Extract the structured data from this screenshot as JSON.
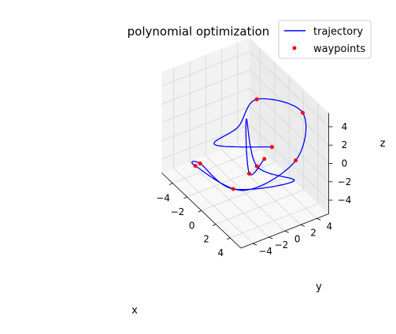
{
  "chart_data": {
    "type": "line",
    "projection": "3d",
    "title": "polynomial optimization",
    "xlabel": "x",
    "ylabel": "y",
    "zlabel": "z",
    "xlim": [
      -5.5,
      5.5
    ],
    "ylim": [
      -5.5,
      5.5
    ],
    "zlim": [
      -5.5,
      5.5
    ],
    "x_ticks": [
      "−4",
      "−2",
      "0",
      "2",
      "4"
    ],
    "y_ticks": [
      "−4",
      "−2",
      "0",
      "2",
      "4"
    ],
    "z_ticks": [
      "−4",
      "−2",
      "0",
      "2",
      "4"
    ],
    "grid": true,
    "legend_position": "top-right",
    "legend": [
      {
        "label": "trajectory",
        "kind": "line",
        "color": "#0000ff"
      },
      {
        "label": "waypoints",
        "kind": "marker",
        "color": "#ff0000"
      }
    ],
    "series": [
      {
        "name": "trajectory",
        "color": "#0000ff",
        "points": [
          [
            1.5,
            2.0,
            0.0
          ],
          [
            -2.0,
            -2.0,
            -1.0
          ],
          [
            -1.0,
            0.0,
            1.0
          ],
          [
            0.5,
            1.0,
            4.8
          ],
          [
            3.0,
            4.5,
            4.0
          ],
          [
            4.8,
            2.0,
            1.0
          ],
          [
            2.0,
            -2.0,
            -3.0
          ],
          [
            -2.5,
            -4.0,
            -3.0
          ],
          [
            -3.5,
            -2.5,
            -4.0
          ],
          [
            0.0,
            -1.5,
            -4.5
          ],
          [
            4.0,
            2.5,
            -2.0
          ],
          [
            0.5,
            1.0,
            -2.5
          ],
          [
            -1.5,
            1.5,
            1.0
          ],
          [
            0.0,
            0.5,
            -3.5
          ],
          [
            1.0,
            1.5,
            -1.5
          ]
        ]
      },
      {
        "name": "waypoints",
        "color": "#ff0000",
        "points": [
          [
            1.0,
            1.5,
            -1.5
          ],
          [
            0.5,
            1.0,
            4.8
          ],
          [
            4.8,
            2.0,
            1.0
          ],
          [
            -2.5,
            -4.0,
            -3.0
          ],
          [
            0.0,
            -1.5,
            -4.5
          ],
          [
            0.5,
            1.0,
            -2.5
          ],
          [
            1.5,
            2.0,
            0.0
          ],
          [
            -3.5,
            -2.5,
            -4.0
          ],
          [
            0.0,
            0.5,
            -3.5
          ],
          [
            3.0,
            4.5,
            4.0
          ]
        ]
      }
    ]
  }
}
